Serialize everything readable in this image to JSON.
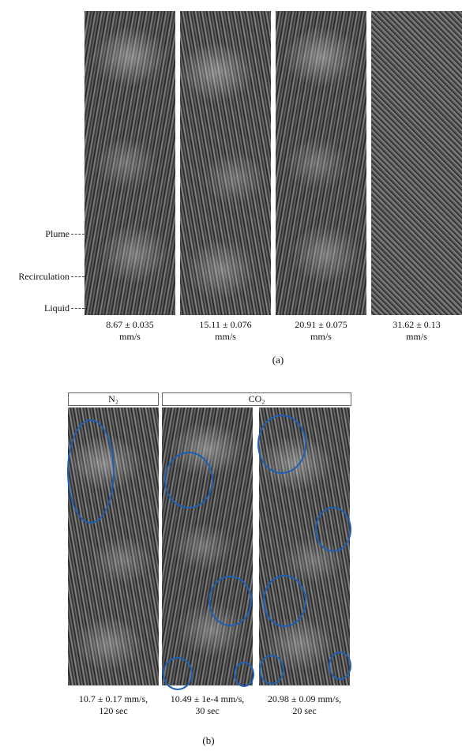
{
  "part_a": {
    "side_labels": {
      "plume": "Plume",
      "recirculation": "Recirculation",
      "liquid": "Liquid"
    },
    "captions": [
      {
        "value": "8.67 ± 0.035",
        "unit": "mm/s"
      },
      {
        "value": "15.11 ± 0.076",
        "unit": "mm/s"
      },
      {
        "value": "20.91 ± 0.075",
        "unit": "mm/s"
      },
      {
        "value": "31.62 ± 0.13",
        "unit": "mm/s"
      }
    ],
    "label": "(a)"
  },
  "part_b": {
    "gas_n2": "N₂",
    "gas_co2": "CO₂",
    "captions": [
      {
        "line1": "10.7 ± 0.17 mm/s,",
        "line2": "120 sec"
      },
      {
        "line1": "10.49 ± 1e-4 mm/s,",
        "line2": "30 sec"
      },
      {
        "line1": "20.98 ± 0.09 mm/s,",
        "line2": "20 sec"
      }
    ],
    "label": "(b)",
    "vortex_color": "#1f5fb5"
  }
}
